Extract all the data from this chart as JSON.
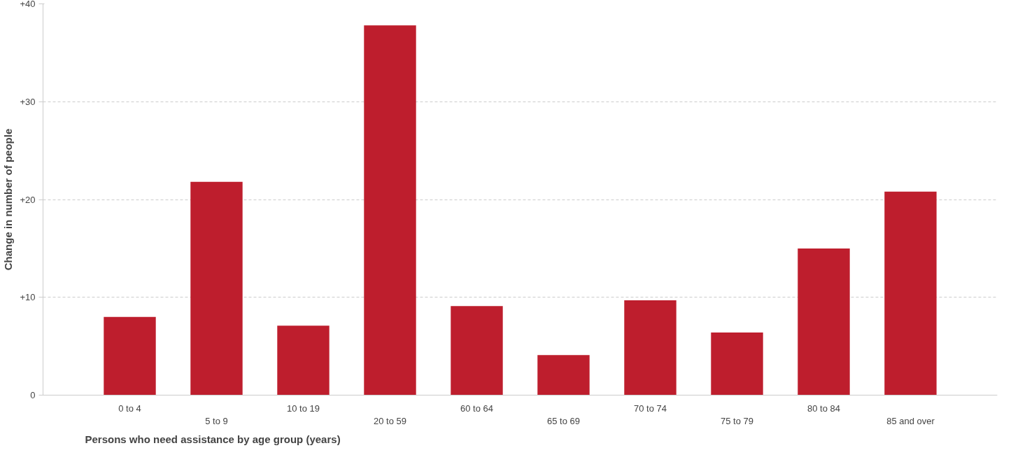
{
  "chart_data": {
    "type": "bar",
    "xlabel": "Persons who need assistance by age group (years)",
    "ylabel": "Change in number of people",
    "categories": [
      "0 to 4",
      "5 to 9",
      "10 to 19",
      "20 to 59",
      "60 to 64",
      "65 to 69",
      "70 to 74",
      "75 to 79",
      "80 to 84",
      "85 and over"
    ],
    "values": [
      8.0,
      21.8,
      7.1,
      37.8,
      9.1,
      4.1,
      9.7,
      6.4,
      15.0,
      20.8
    ],
    "color": "#be1e2d",
    "ylim": [
      0,
      40
    ],
    "yticks": [
      0,
      {
        "value": 10,
        "label": "+10"
      },
      {
        "value": 20,
        "label": "+20"
      },
      {
        "value": 30,
        "label": "+30"
      },
      {
        "value": 40,
        "label": "+40"
      }
    ],
    "grid": "y"
  }
}
